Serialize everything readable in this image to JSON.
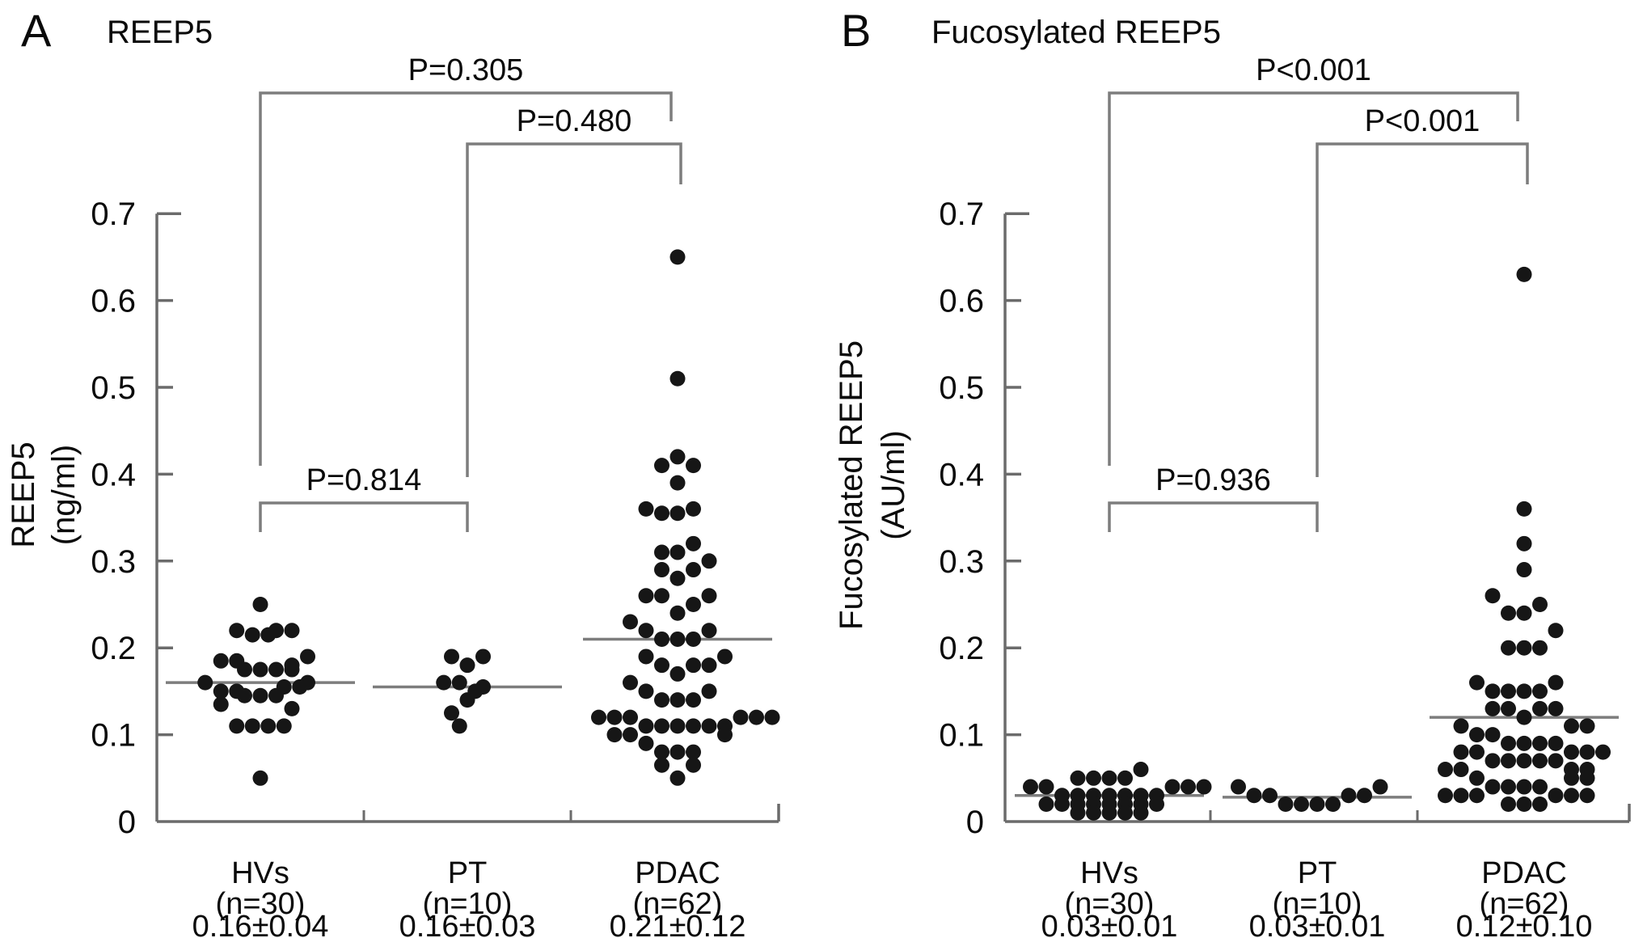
{
  "figure_labels": {
    "panel_a_letter": "A",
    "panel_a_title": "REEP5",
    "panel_b_letter": "B",
    "panel_b_title": "Fucosylated REEP5"
  },
  "chart_data": [
    {
      "type": "scatter",
      "subtype": "beeswarm-dot-plot",
      "panel": "A",
      "title": "REEP5",
      "ylabel": "REEP5 (ng/ml)",
      "ylabel_lines": [
        "REEP5",
        "(ng/ml)"
      ],
      "ylim": [
        0,
        0.7
      ],
      "ytick_labels": [
        "0",
        "0.1",
        "0.2",
        "0.3",
        "0.4",
        "0.5",
        "0.6",
        "0.7"
      ],
      "grid": false,
      "point_color": "#161616",
      "line_color": "#7d7d7d",
      "axis_color": "#6b6b6b",
      "groups": [
        {
          "label": "HVs",
          "n_label": "(n=30)",
          "stat_label": "0.16±0.04",
          "n": 30,
          "mean": 0.16,
          "points": [
            [
              0.25,
              0
            ],
            [
              0.22,
              -1.5
            ],
            [
              0.22,
              1
            ],
            [
              0.22,
              2
            ],
            [
              0.215,
              -0.5
            ],
            [
              0.215,
              0.5
            ],
            [
              0.19,
              3
            ],
            [
              0.185,
              -2.5
            ],
            [
              0.185,
              -1.5
            ],
            [
              0.18,
              2
            ],
            [
              0.175,
              -1
            ],
            [
              0.175,
              0
            ],
            [
              0.175,
              1
            ],
            [
              0.175,
              2
            ],
            [
              0.16,
              -3.5
            ],
            [
              0.16,
              3
            ],
            [
              0.15,
              -2.5
            ],
            [
              0.15,
              -1.5
            ],
            [
              0.155,
              1.5
            ],
            [
              0.155,
              2.5
            ],
            [
              0.145,
              -1
            ],
            [
              0.145,
              0
            ],
            [
              0.145,
              1
            ],
            [
              0.135,
              -2.5
            ],
            [
              0.13,
              2
            ],
            [
              0.11,
              -1.5
            ],
            [
              0.11,
              -0.5
            ],
            [
              0.11,
              0.5
            ],
            [
              0.11,
              1.5
            ],
            [
              0.05,
              0
            ]
          ]
        },
        {
          "label": "PT",
          "n_label": "(n=10)",
          "stat_label": "0.16±0.03",
          "n": 10,
          "mean": 0.155,
          "points": [
            [
              0.19,
              -1
            ],
            [
              0.19,
              1
            ],
            [
              0.18,
              0
            ],
            [
              0.16,
              -1.5
            ],
            [
              0.16,
              -0.5
            ],
            [
              0.155,
              1
            ],
            [
              0.15,
              0.5
            ],
            [
              0.14,
              0
            ],
            [
              0.125,
              -1
            ],
            [
              0.11,
              -0.5
            ]
          ]
        },
        {
          "label": "PDAC",
          "n_label": "(n=62)",
          "stat_label": "0.21±0.12",
          "n": 62,
          "mean": 0.21,
          "points": [
            [
              0.65,
              0
            ],
            [
              0.51,
              0
            ],
            [
              0.42,
              0
            ],
            [
              0.41,
              -1
            ],
            [
              0.41,
              1
            ],
            [
              0.39,
              0
            ],
            [
              0.36,
              -2
            ],
            [
              0.355,
              -1
            ],
            [
              0.355,
              0
            ],
            [
              0.36,
              1
            ],
            [
              0.32,
              1
            ],
            [
              0.31,
              -1
            ],
            [
              0.31,
              0
            ],
            [
              0.3,
              2
            ],
            [
              0.29,
              -1
            ],
            [
              0.29,
              1
            ],
            [
              0.28,
              0
            ],
            [
              0.26,
              -2
            ],
            [
              0.26,
              -1
            ],
            [
              0.26,
              2
            ],
            [
              0.25,
              1
            ],
            [
              0.24,
              0
            ],
            [
              0.23,
              -3
            ],
            [
              0.22,
              -2
            ],
            [
              0.22,
              2
            ],
            [
              0.21,
              -1
            ],
            [
              0.21,
              0
            ],
            [
              0.21,
              1
            ],
            [
              0.19,
              -2
            ],
            [
              0.19,
              3
            ],
            [
              0.18,
              -1
            ],
            [
              0.18,
              1
            ],
            [
              0.18,
              2
            ],
            [
              0.17,
              0
            ],
            [
              0.16,
              -3
            ],
            [
              0.15,
              -2
            ],
            [
              0.15,
              2
            ],
            [
              0.14,
              -1
            ],
            [
              0.14,
              0
            ],
            [
              0.14,
              1
            ],
            [
              0.12,
              -5
            ],
            [
              0.12,
              -4
            ],
            [
              0.12,
              -3
            ],
            [
              0.12,
              4
            ],
            [
              0.12,
              5
            ],
            [
              0.12,
              6
            ],
            [
              0.11,
              -2
            ],
            [
              0.11,
              -1
            ],
            [
              0.11,
              0
            ],
            [
              0.11,
              1
            ],
            [
              0.11,
              2
            ],
            [
              0.11,
              3
            ],
            [
              0.1,
              -4
            ],
            [
              0.1,
              -3
            ],
            [
              0.1,
              3
            ],
            [
              0.09,
              -2
            ],
            [
              0.08,
              -1
            ],
            [
              0.08,
              0
            ],
            [
              0.08,
              1
            ],
            [
              0.065,
              -1
            ],
            [
              0.065,
              1
            ],
            [
              0.05,
              0
            ]
          ]
        }
      ],
      "comparisons": [
        {
          "label": "P=0.305",
          "from": "HVs",
          "to": "PDAC"
        },
        {
          "label": "P=0.480",
          "from": "PT",
          "to": "PDAC"
        },
        {
          "label": "P=0.814",
          "from": "HVs",
          "to": "PT"
        }
      ]
    },
    {
      "type": "scatter",
      "subtype": "beeswarm-dot-plot",
      "panel": "B",
      "title": "Fucosylated REEP5",
      "ylabel": "Fucosylated REEP5 (AU/ml)",
      "ylabel_lines": [
        "Fucosylated REEP5",
        "(AU/ml)"
      ],
      "ylim": [
        0,
        0.7
      ],
      "ytick_labels": [
        "0",
        "0.1",
        "0.2",
        "0.3",
        "0.4",
        "0.5",
        "0.6",
        "0.7"
      ],
      "grid": false,
      "point_color": "#161616",
      "line_color": "#7d7d7d",
      "axis_color": "#6b6b6b",
      "groups": [
        {
          "label": "HVs",
          "n_label": "(n=30)",
          "stat_label": "0.03±0.01",
          "n": 30,
          "mean": 0.03,
          "points": [
            [
              0.06,
              2
            ],
            [
              0.05,
              -2
            ],
            [
              0.05,
              -1
            ],
            [
              0.05,
              0
            ],
            [
              0.05,
              1
            ],
            [
              0.04,
              -5
            ],
            [
              0.04,
              -4
            ],
            [
              0.04,
              4
            ],
            [
              0.04,
              5
            ],
            [
              0.04,
              6
            ],
            [
              0.03,
              -3
            ],
            [
              0.03,
              -2
            ],
            [
              0.03,
              -1
            ],
            [
              0.03,
              0
            ],
            [
              0.03,
              1
            ],
            [
              0.03,
              2
            ],
            [
              0.03,
              3
            ],
            [
              0.02,
              -4
            ],
            [
              0.02,
              -3
            ],
            [
              0.02,
              -2
            ],
            [
              0.02,
              -1
            ],
            [
              0.02,
              0
            ],
            [
              0.02,
              1
            ],
            [
              0.02,
              2
            ],
            [
              0.02,
              3
            ],
            [
              0.01,
              -2
            ],
            [
              0.01,
              -1
            ],
            [
              0.01,
              0
            ],
            [
              0.01,
              1
            ],
            [
              0.01,
              2
            ]
          ]
        },
        {
          "label": "PT",
          "n_label": "(n=10)",
          "stat_label": "0.03±0.01",
          "n": 10,
          "mean": 0.028,
          "points": [
            [
              0.04,
              -5
            ],
            [
              0.03,
              -4
            ],
            [
              0.03,
              -3
            ],
            [
              0.02,
              -2
            ],
            [
              0.02,
              -1
            ],
            [
              0.02,
              0
            ],
            [
              0.02,
              1
            ],
            [
              0.03,
              2
            ],
            [
              0.03,
              3
            ],
            [
              0.04,
              4
            ]
          ]
        },
        {
          "label": "PDAC",
          "n_label": "(n=62)",
          "stat_label": "0.12±0.10",
          "n": 62,
          "mean": 0.12,
          "points": [
            [
              0.63,
              0
            ],
            [
              0.36,
              0
            ],
            [
              0.32,
              0
            ],
            [
              0.29,
              0
            ],
            [
              0.26,
              -2
            ],
            [
              0.25,
              1
            ],
            [
              0.24,
              -1
            ],
            [
              0.24,
              0
            ],
            [
              0.22,
              2
            ],
            [
              0.2,
              -1
            ],
            [
              0.2,
              0
            ],
            [
              0.2,
              1
            ],
            [
              0.16,
              -3
            ],
            [
              0.16,
              2
            ],
            [
              0.15,
              -2
            ],
            [
              0.15,
              -1
            ],
            [
              0.15,
              0
            ],
            [
              0.15,
              1
            ],
            [
              0.13,
              -2
            ],
            [
              0.13,
              -1
            ],
            [
              0.13,
              1
            ],
            [
              0.13,
              2
            ],
            [
              0.12,
              0
            ],
            [
              0.11,
              -4
            ],
            [
              0.11,
              3
            ],
            [
              0.11,
              4
            ],
            [
              0.1,
              -3
            ],
            [
              0.1,
              -2
            ],
            [
              0.09,
              -1
            ],
            [
              0.09,
              0
            ],
            [
              0.09,
              1
            ],
            [
              0.09,
              2
            ],
            [
              0.08,
              -4
            ],
            [
              0.08,
              -3
            ],
            [
              0.08,
              3
            ],
            [
              0.08,
              4
            ],
            [
              0.08,
              5
            ],
            [
              0.07,
              -2
            ],
            [
              0.07,
              -1
            ],
            [
              0.07,
              0
            ],
            [
              0.07,
              1
            ],
            [
              0.07,
              2
            ],
            [
              0.06,
              -5
            ],
            [
              0.06,
              -4
            ],
            [
              0.06,
              3
            ],
            [
              0.06,
              4
            ],
            [
              0.05,
              -3
            ],
            [
              0.05,
              3
            ],
            [
              0.05,
              4
            ],
            [
              0.04,
              -2
            ],
            [
              0.04,
              -1
            ],
            [
              0.04,
              0
            ],
            [
              0.04,
              1
            ],
            [
              0.03,
              -5
            ],
            [
              0.03,
              -4
            ],
            [
              0.03,
              -3
            ],
            [
              0.03,
              2
            ],
            [
              0.03,
              3
            ],
            [
              0.03,
              4
            ],
            [
              0.02,
              -1
            ],
            [
              0.02,
              0
            ],
            [
              0.02,
              1
            ]
          ]
        }
      ],
      "comparisons": [
        {
          "label": "P<0.001",
          "from": "HVs",
          "to": "PDAC"
        },
        {
          "label": "P<0.001",
          "from": "PT",
          "to": "PDAC"
        },
        {
          "label": "P=0.936",
          "from": "HVs",
          "to": "PT"
        }
      ]
    }
  ]
}
